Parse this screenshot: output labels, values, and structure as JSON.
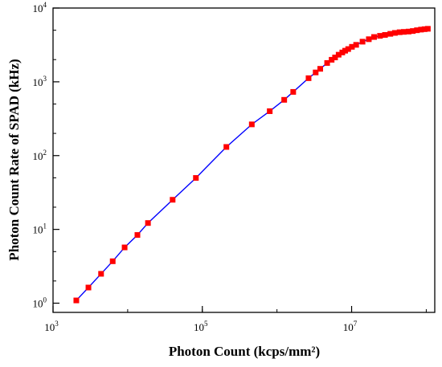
{
  "chart_data": {
    "type": "scatter",
    "xlabel": "Photon Count (kcps/mm²)",
    "ylabel": "Photon Count Rate of SPAD (kHz)",
    "x_scale": "log",
    "y_scale": "log",
    "xlim": [
      1000,
      130000000
    ],
    "ylim": [
      0.75,
      10000
    ],
    "grid": false,
    "x_ticks": [
      {
        "base": "10",
        "exp": "3"
      },
      {
        "base": "10",
        "exp": "5"
      },
      {
        "base": "10",
        "exp": "7"
      }
    ],
    "y_ticks": [
      {
        "base": "10",
        "exp": "0"
      },
      {
        "base": "10",
        "exp": "1"
      },
      {
        "base": "10",
        "exp": "2"
      },
      {
        "base": "10",
        "exp": "3"
      },
      {
        "base": "10",
        "exp": "4"
      }
    ],
    "series": [
      {
        "marker": "square",
        "color": "#ff0000",
        "line_color": "#0000ff",
        "x": [
          2050,
          2980,
          4400,
          6300,
          9100,
          13500,
          18700,
          40000,
          82000,
          210000,
          460000,
          800000,
          1250000,
          1650000,
          2650000,
          3300000,
          3800000,
          4700000,
          5400000,
          6000000,
          6700000,
          7500000,
          8200000,
          9000000,
          10100000,
          11500000,
          14000000,
          17000000,
          20000000,
          24000000,
          28000000,
          33000000,
          38000000,
          44000000,
          50000000,
          58000000,
          66000000,
          75000000,
          85000000,
          95000000,
          105000000
        ],
        "y": [
          1.09,
          1.63,
          2.5,
          3.7,
          5.7,
          8.4,
          12.2,
          25.2,
          49.8,
          131,
          265,
          400,
          570,
          730,
          1120,
          1340,
          1500,
          1800,
          1990,
          2140,
          2330,
          2500,
          2640,
          2780,
          2980,
          3170,
          3500,
          3780,
          4050,
          4200,
          4320,
          4470,
          4600,
          4700,
          4750,
          4800,
          4880,
          5000,
          5100,
          5170,
          5230
        ]
      }
    ]
  }
}
